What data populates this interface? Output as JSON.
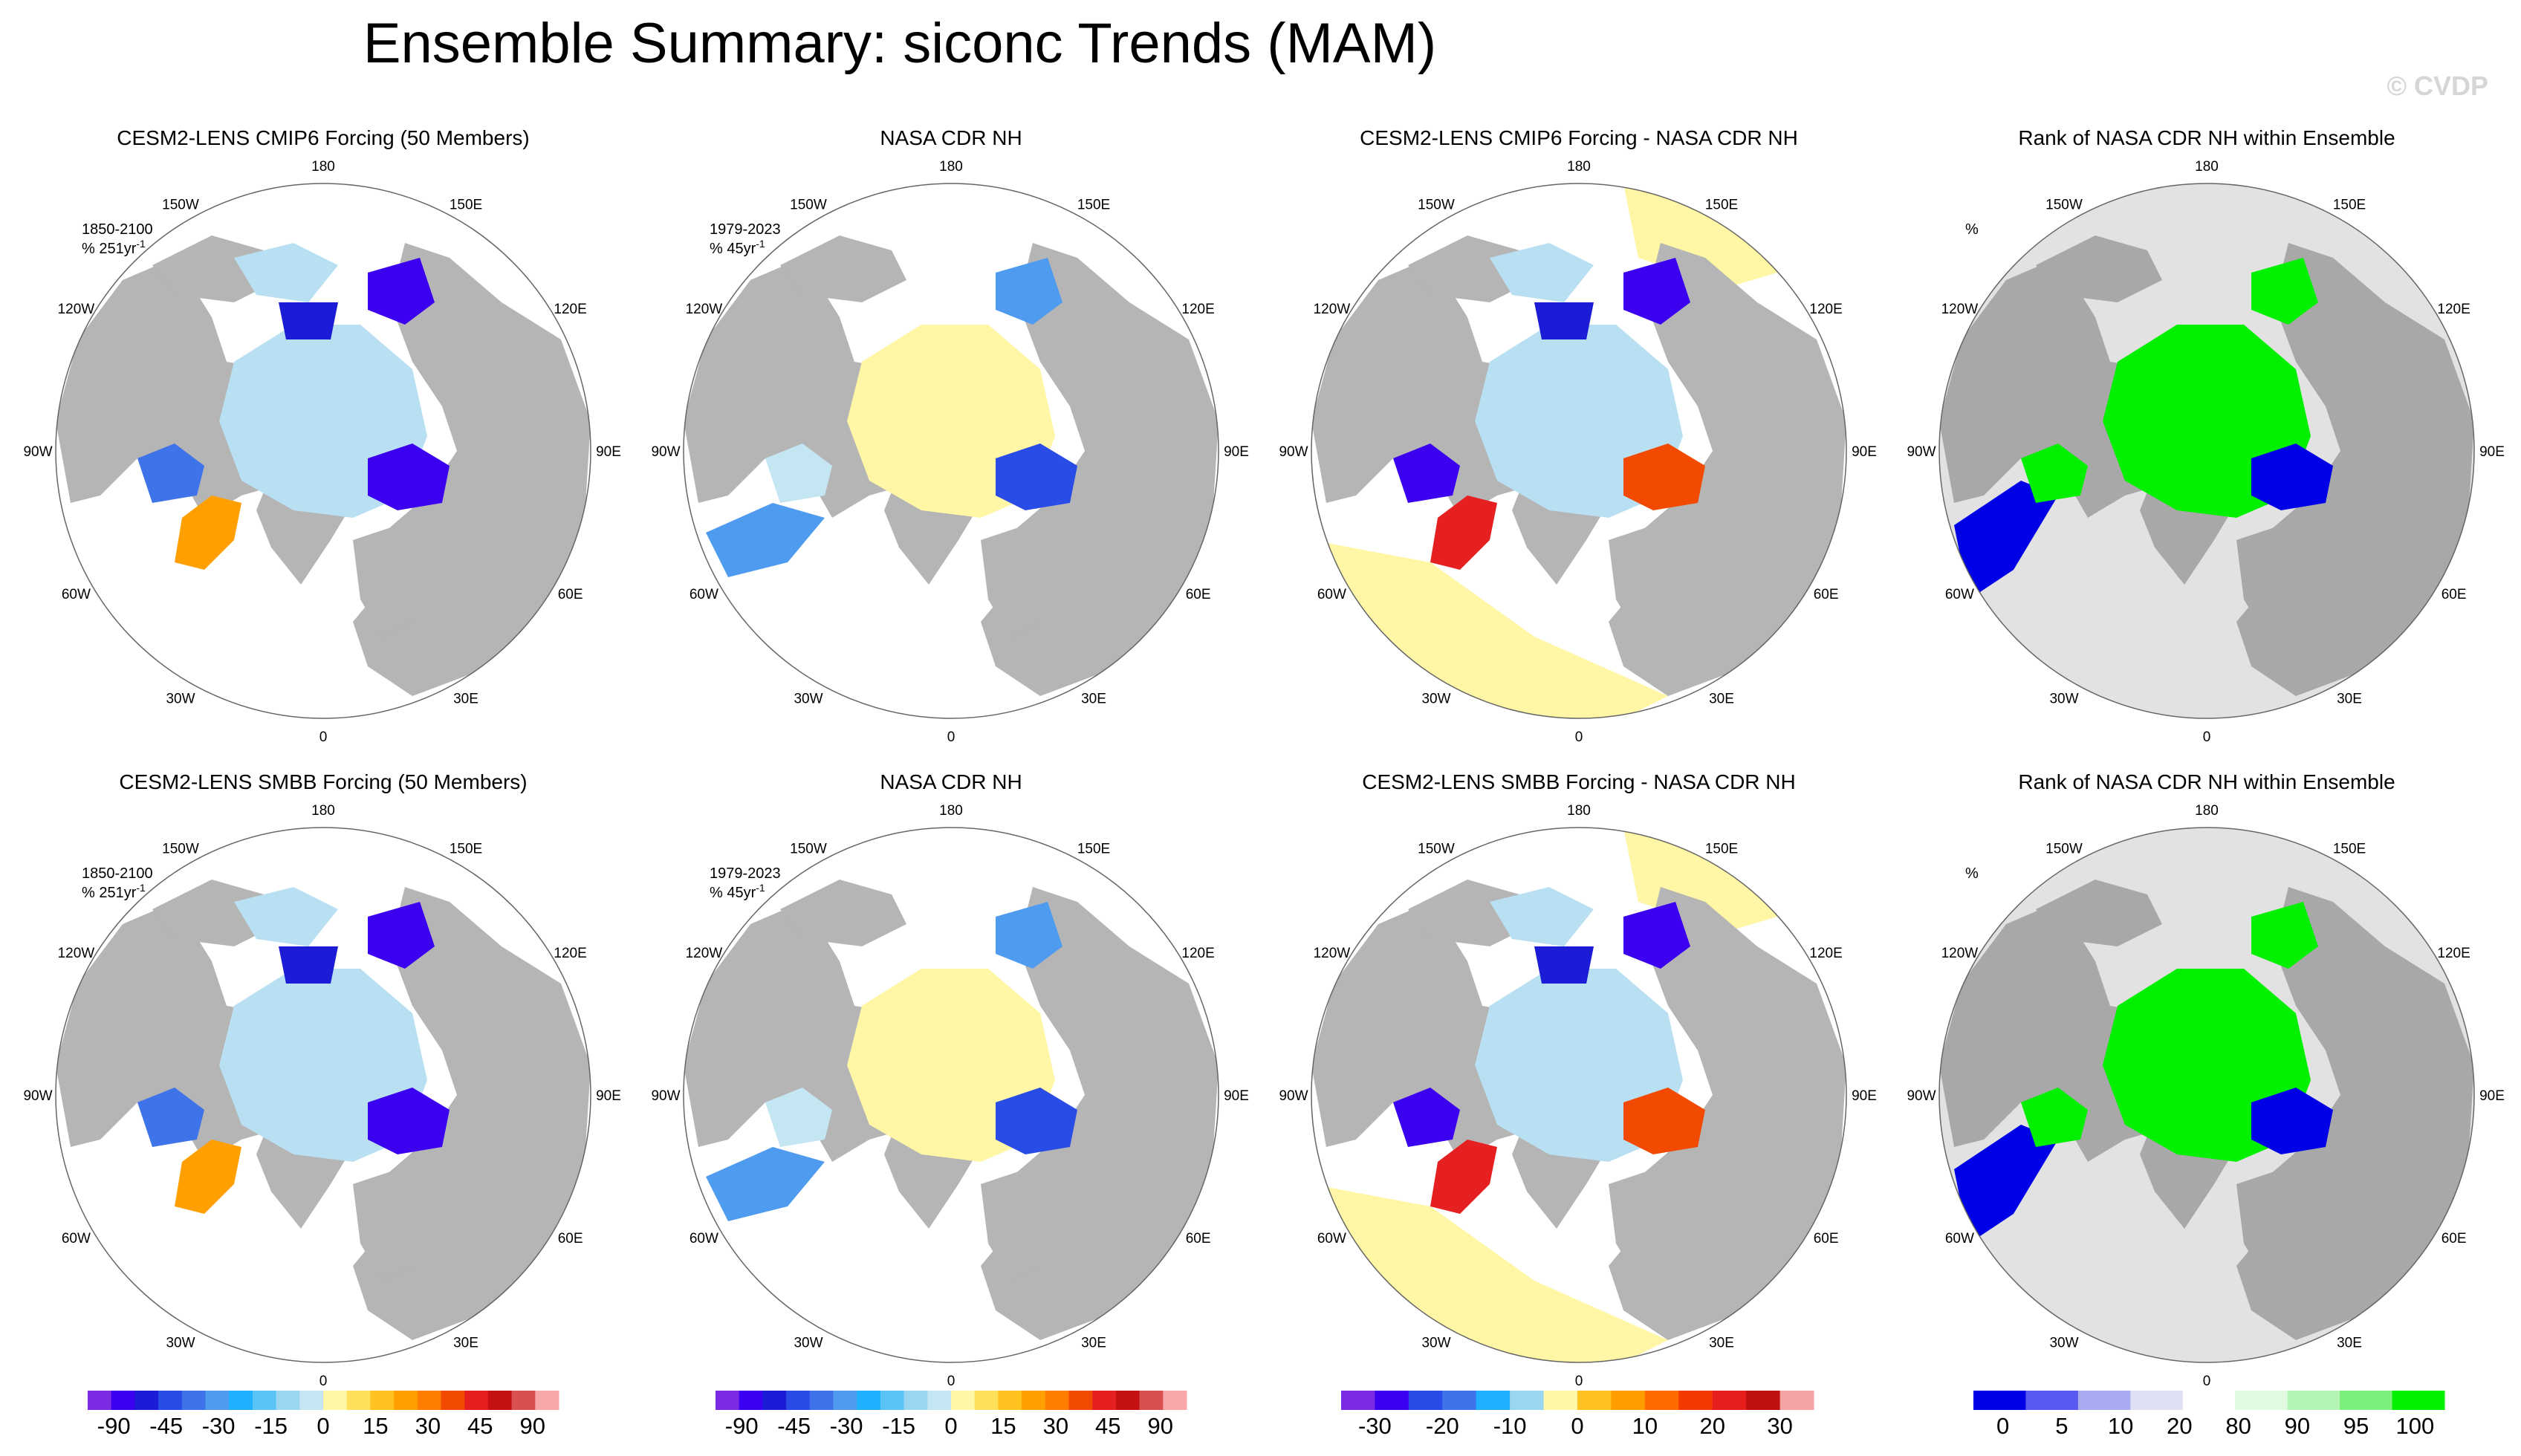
{
  "title": "Ensemble Summary: siconc Trends (MAM)",
  "watermark": "© CVDP",
  "colors": {
    "land": "#b5b5b5",
    "ocean": "#ffffff",
    "ice": "#b9e0f2",
    "rank_bg": "#e2e2e2",
    "rank_green": "#00f000",
    "rank_blue": "#0000e6",
    "title_cmip6": "#1b6e8c",
    "title_smbb": "#5e8f5e"
  },
  "lon_labels": [
    "180",
    "150E",
    "120E",
    "90E",
    "60E",
    "30E",
    "0",
    "30W",
    "60W",
    "90W",
    "120W",
    "150W"
  ],
  "rows": [
    {
      "panels": [
        {
          "type": "trend_model",
          "title": "CESM2-LENS CMIP6 Forcing (50 Members)",
          "title_color": "#1b6e8c",
          "ann1": "1850-2100",
          "ann2": "% 251yr",
          "ann_sup": "-1"
        },
        {
          "type": "trend_obs",
          "title": "NASA CDR NH",
          "title_color": "#000000",
          "ann1": "1979-2023",
          "ann2": "% 45yr",
          "ann_sup": "-1"
        },
        {
          "type": "diff",
          "title": "CESM2-LENS CMIP6 Forcing - NASA CDR NH",
          "title_color": "#000000",
          "ann1": "",
          "ann2": "",
          "ann_sup": ""
        },
        {
          "type": "rank",
          "title": "Rank of NASA CDR NH within Ensemble",
          "title_color": "#000000",
          "ann1": "%",
          "ann2": "",
          "ann_sup": ""
        }
      ]
    },
    {
      "panels": [
        {
          "type": "trend_model",
          "title": "CESM2-LENS SMBB Forcing (50 Members)",
          "title_color": "#5e8f5e",
          "ann1": "1850-2100",
          "ann2": "% 251yr",
          "ann_sup": "-1"
        },
        {
          "type": "trend_obs",
          "title": "NASA CDR NH",
          "title_color": "#000000",
          "ann1": "1979-2023",
          "ann2": "% 45yr",
          "ann_sup": "-1"
        },
        {
          "type": "diff",
          "title": "CESM2-LENS SMBB Forcing - NASA CDR NH",
          "title_color": "#000000",
          "ann1": "",
          "ann2": "",
          "ann_sup": ""
        },
        {
          "type": "rank",
          "title": "Rank of NASA CDR NH within Ensemble",
          "title_color": "#000000",
          "ann1": "%",
          "ann2": "",
          "ann_sup": ""
        }
      ]
    }
  ],
  "chart_data": [
    {
      "type": "colorbar",
      "name": "trend",
      "colors": [
        "#7b2be2",
        "#3b00f0",
        "#1c1cd6",
        "#2a4ce6",
        "#3f73e9",
        "#4f9bf0",
        "#1fb0ff",
        "#59c4f5",
        "#9ad6f0",
        "#c4e6f3",
        "#fff6a6",
        "#ffe05a",
        "#ffc21e",
        "#ffa000",
        "#ff7d00",
        "#f24a00",
        "#e62020",
        "#c41010",
        "#d85050",
        "#f7a7a7"
      ],
      "labels": [
        "-90",
        "-45",
        "-30",
        "-15",
        "0",
        "15",
        "30",
        "45",
        "90"
      ]
    },
    {
      "type": "colorbar",
      "name": "difference",
      "colors": [
        "#7b2be2",
        "#3b00f0",
        "#2a4ce6",
        "#3f73e9",
        "#1fb0ff",
        "#9ad6f0",
        "#fff6a6",
        "#ffc21e",
        "#ff9d00",
        "#ff6a00",
        "#f23a00",
        "#e61e1e",
        "#c01010",
        "#f4a4a4"
      ],
      "labels": [
        "-30",
        "-20",
        "-10",
        "0",
        "10",
        "20",
        "30"
      ]
    },
    {
      "type": "colorbar",
      "name": "rank",
      "colors": [
        "#0000e6",
        "#5a5af2",
        "#aaaaf2",
        "#e0e0f5",
        "#ffffff",
        "#e0fae0",
        "#b4f4b4",
        "#7cf07c",
        "#00f000"
      ],
      "labels": [
        "0",
        "5",
        "10",
        "20",
        "80",
        "90",
        "95",
        "100"
      ]
    }
  ]
}
